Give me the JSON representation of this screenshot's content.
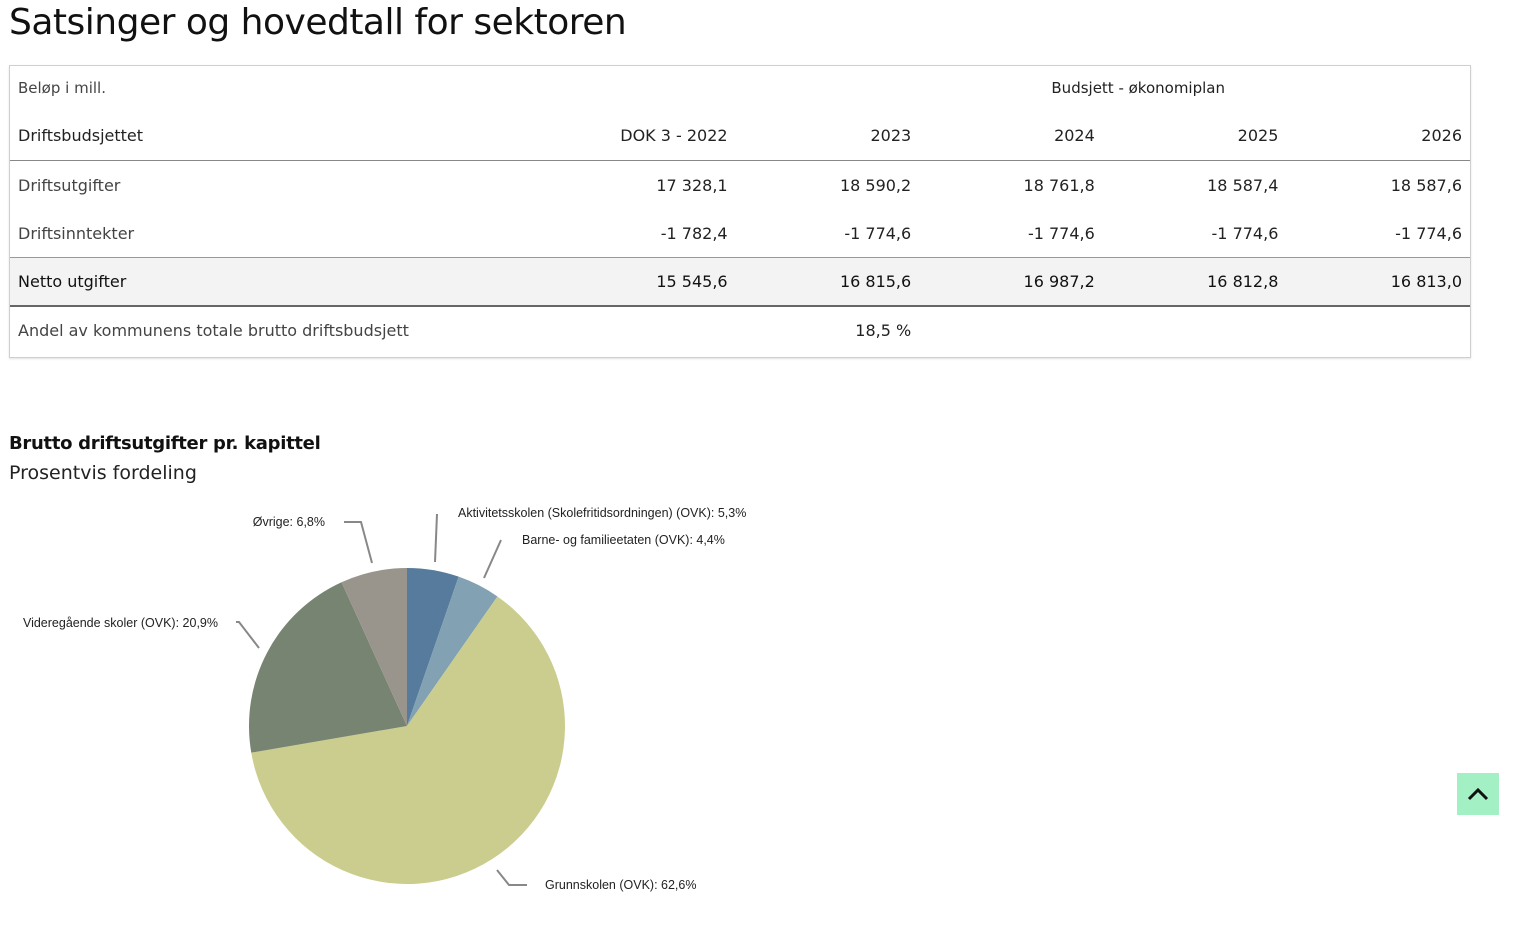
{
  "page": {
    "title": "Satsinger og hovedtall for sektoren"
  },
  "table": {
    "unit_label": "Beløp i mill.",
    "group_header": "Budsjett - økonomiplan",
    "columns": [
      "Driftsbudsjettet",
      "DOK 3 - 2022",
      "2023",
      "2024",
      "2025",
      "2026"
    ],
    "rows": [
      {
        "label": "Driftsutgifter",
        "values": [
          "17 328,1",
          "18 590,2",
          "18 761,8",
          "18 587,4",
          "18 587,6"
        ]
      },
      {
        "label": "Driftsinntekter",
        "values": [
          "-1 782,4",
          "-1 774,6",
          "-1 774,6",
          "-1 774,6",
          "-1 774,6"
        ]
      }
    ],
    "total": {
      "label": "Netto utgifter",
      "values": [
        "15 545,6",
        "16 815,6",
        "16 987,2",
        "16 812,8",
        "16 813,0"
      ]
    },
    "share": {
      "label": "Andel av kommunens totale brutto driftsbudsjett",
      "values": [
        "",
        "18,5 %",
        "",
        "",
        ""
      ]
    }
  },
  "chart_data": {
    "type": "pie",
    "title": "Brutto driftsutgifter pr. kapittel",
    "subtitle": "Prosentvis fordeling",
    "start_angle_deg": 0,
    "direction": "clockwise",
    "slices": [
      {
        "name": "Aktivitetsskolen (Skolefritidsordningen) (OVK)",
        "value": 5.3,
        "label": "Aktivitetsskolen (Skolefritidsordningen) (OVK): 5,3%",
        "color": "#567b9c"
      },
      {
        "name": "Barne- og familieetaten (OVK)",
        "value": 4.4,
        "label": "Barne- og familieetaten (OVK): 4,4%",
        "color": "#82a1b3"
      },
      {
        "name": "Grunnskolen (OVK)",
        "value": 62.6,
        "label": "Grunnskolen (OVK): 62,6%",
        "color": "#cbcd8e"
      },
      {
        "name": "Videregående skoler (OVK)",
        "value": 20.9,
        "label": "Videregående skoler (OVK): 20,9%",
        "color": "#788472"
      },
      {
        "name": "Øvrige",
        "value": 6.8,
        "label": "Øvrige: 6,8%",
        "color": "#9a958c"
      }
    ]
  },
  "scroll_top": {
    "icon": "chevron-up-icon",
    "color": "#a3f0c4"
  }
}
